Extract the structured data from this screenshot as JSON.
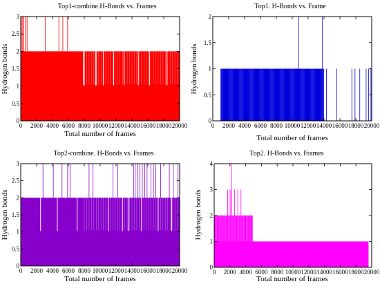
{
  "chart_data": [
    {
      "type": "bar",
      "title": "Top1-combine.H-Bonds vs. Frames",
      "xlabel": "Total number of frames",
      "ylabel": "Hydrogen bonds",
      "xlim": [
        0,
        20000
      ],
      "ylim": [
        0,
        3
      ],
      "xticks": [
        "0",
        "2000",
        "4000",
        "6000",
        "8000",
        "10000",
        "12000",
        "14000",
        "16000",
        "18000",
        "20000"
      ],
      "yticks": [
        "0",
        "0.5",
        "1",
        "1.5",
        "2",
        "2.5",
        "3"
      ],
      "color": "#ff0000",
      "series": [
        {
          "x": [
            0,
            20000
          ],
          "values": [
            2,
            2
          ]
        }
      ],
      "spikes_to_3": [
        100,
        250,
        400,
        600,
        800,
        3100,
        4800,
        5300,
        5900
      ],
      "gaps_to_1": [
        7900,
        8000,
        9400,
        9500,
        10400,
        11700,
        13000,
        14800,
        16200,
        18400
      ]
    },
    {
      "type": "bar",
      "title": "Top1. H-Bonds vs. Frame",
      "xlabel": "Total number of frames",
      "ylabel": "Hydrogen bonds",
      "xlim": [
        0,
        20000
      ],
      "ylim": [
        0,
        2
      ],
      "xticks": [
        "0",
        "2000",
        "4000",
        "6000",
        "8000",
        "10000",
        "12000",
        "14000",
        "16000",
        "18000",
        "20000"
      ],
      "yticks": [
        "0",
        "0.5",
        "1",
        "1.5",
        "2"
      ],
      "color": "#0000dd",
      "series": [
        {
          "x": [
            1000,
            14000
          ],
          "values": [
            1,
            1
          ]
        }
      ],
      "spikes_to_2": [
        10800,
        13800
      ],
      "sparse_to_1": [
        14300,
        15600,
        17500,
        17900,
        18500,
        19300,
        19600,
        19900
      ]
    },
    {
      "type": "bar",
      "title": "Top2-combine. H-Bonds vs. Frames",
      "xlabel": "Total number of frames",
      "ylabel": "Hydrogen bonds",
      "xlim": [
        0,
        20000
      ],
      "ylim": [
        0,
        3
      ],
      "xticks": [
        "0",
        "2000",
        "4000",
        "6000",
        "8000",
        "10000",
        "12000",
        "14000",
        "16000",
        "18000",
        "20000"
      ],
      "yticks": [
        "0",
        "0.5",
        "1",
        "1.5",
        "2",
        "2.5",
        "3"
      ],
      "color": "#8800cc",
      "series": [
        {
          "x": [
            0,
            20000
          ],
          "values": [
            2,
            2
          ]
        }
      ],
      "spikes_to_3": [
        2800,
        4100,
        5200,
        5900,
        6200,
        8600,
        9100,
        11600,
        12200,
        14200,
        14400,
        14700,
        15000,
        15300,
        15600,
        15900,
        16400,
        16700,
        17000,
        17600,
        18700,
        19200,
        19800
      ],
      "gaps_to_1": [
        2500,
        4600,
        7100,
        11000,
        12800,
        13600,
        15200,
        17300,
        19000
      ]
    },
    {
      "type": "bar",
      "title": "Top2. H-Bonds vs. Frames",
      "xlabel": "Total number of frames",
      "ylabel": "Hydrogen bonds",
      "xlim": [
        0,
        20000
      ],
      "ylim": [
        0,
        4
      ],
      "xticks": [
        "0",
        "2000",
        "4000",
        "6000",
        "8000",
        "10000",
        "12000",
        "14000",
        "16000",
        "18000",
        "20000"
      ],
      "yticks": [
        "0",
        "1",
        "2",
        "3",
        "4"
      ],
      "color": "#ff00ff",
      "series": [
        {
          "x": [
            0,
            19600
          ],
          "values": [
            1,
            1
          ]
        }
      ],
      "level2_range": [
        0,
        4900
      ],
      "spikes_to_3": [
        1700,
        1900,
        2100,
        2600,
        3000,
        3400
      ],
      "spikes_to_4": [
        2200
      ]
    }
  ]
}
